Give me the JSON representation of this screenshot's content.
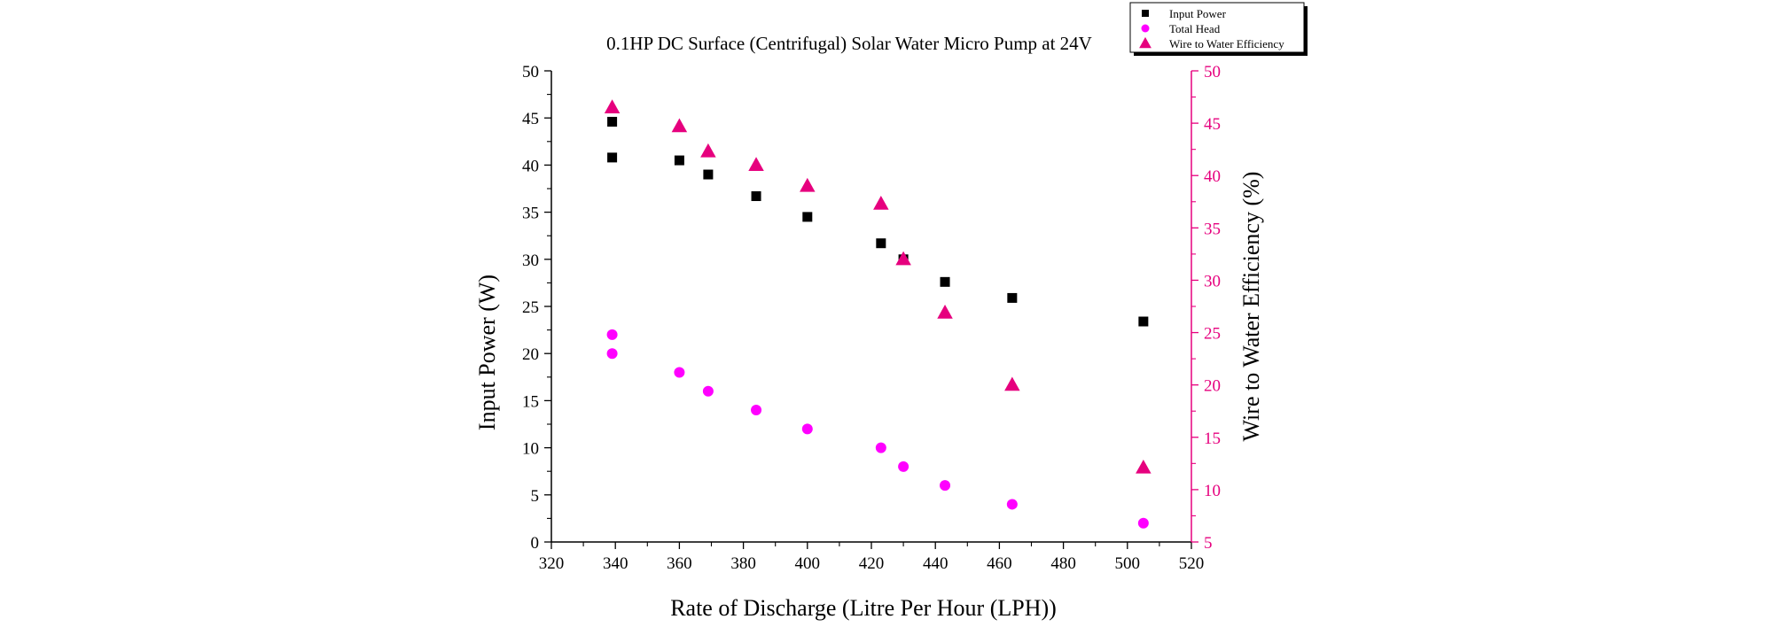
{
  "chart_data": {
    "type": "scatter",
    "title": "0.1HP DC Surface (Centrifugal) Solar Water Micro Pump at 24V",
    "xlabel": "Rate of Discharge (Litre Per Hour (LPH))",
    "ylabel": "Input Power (W)",
    "y2label": "Wire to Water Efficiency (%)",
    "xlim": [
      320,
      520
    ],
    "ylim": [
      0,
      50
    ],
    "y2lim": [
      5,
      50
    ],
    "x_ticks": [
      320,
      340,
      360,
      380,
      400,
      420,
      440,
      460,
      480,
      500,
      520
    ],
    "y_ticks": [
      0,
      5,
      10,
      15,
      20,
      25,
      30,
      35,
      40,
      45,
      50
    ],
    "y2_ticks": [
      5,
      10,
      15,
      20,
      25,
      30,
      35,
      40,
      45,
      50
    ],
    "legend_position": "top-right",
    "series": [
      {
        "name": "Input Power",
        "axis": "left",
        "marker": "square",
        "color": "#000000",
        "x": [
          339,
          339,
          360,
          369,
          384,
          400,
          423,
          430,
          443,
          464,
          505
        ],
        "y": [
          44.6,
          40.8,
          40.5,
          39.0,
          36.7,
          34.5,
          31.7,
          30.0,
          27.6,
          25.9,
          23.4
        ]
      },
      {
        "name": "Total Head",
        "axis": "left",
        "marker": "circle",
        "color": "#ff00ff",
        "x": [
          339,
          339,
          360,
          369,
          384,
          400,
          423,
          430,
          443,
          464,
          505
        ],
        "y": [
          22,
          20,
          18,
          16,
          14,
          12,
          10,
          8,
          6,
          4,
          2
        ]
      },
      {
        "name": "Wire to Water Efficiency",
        "axis": "right",
        "marker": "triangle",
        "color": "#e6007e",
        "x": [
          339,
          360,
          369,
          384,
          400,
          423,
          430,
          443,
          464,
          505
        ],
        "y": [
          46.5,
          44.7,
          42.3,
          41.0,
          39.0,
          37.3,
          32.0,
          26.9,
          20.0,
          12.1
        ]
      }
    ]
  }
}
